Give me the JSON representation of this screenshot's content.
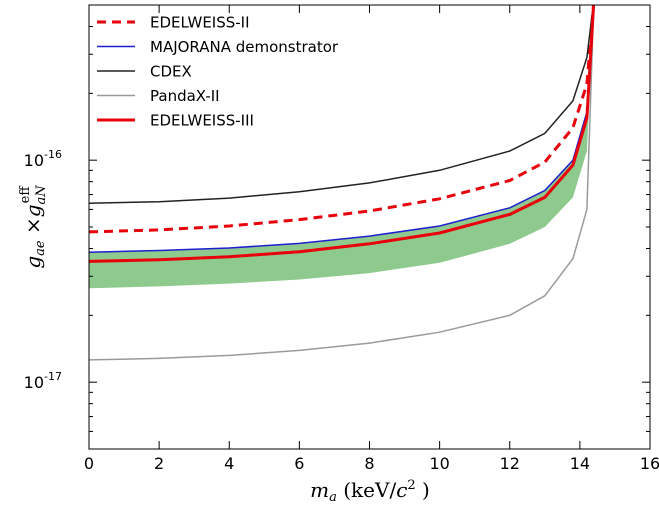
{
  "chart_data": {
    "type": "line",
    "xlabel": "m_a (keV/c^2 )",
    "ylabel": "g_ae × g_aN^eff",
    "xlim": [
      0,
      16
    ],
    "ylim": [
      5e-18,
      5e-16
    ],
    "yscale": "log",
    "xticks": [
      "0",
      "2",
      "4",
      "6",
      "8",
      "10",
      "12",
      "14",
      "16"
    ],
    "yticks": [
      {
        "value": 1e-16,
        "base": "10",
        "exp": "-16"
      },
      {
        "value": 1e-17,
        "base": "10",
        "exp": "-17"
      }
    ],
    "grid": false,
    "legend_position": "top-left",
    "cutoff_x": 14.4,
    "band": {
      "color": "#8ec98e",
      "lower": {
        "x": [
          0,
          2,
          4,
          6,
          8,
          10,
          12,
          13,
          13.8,
          14.2
        ],
        "y": [
          2.65e-17,
          2.7e-17,
          2.78e-17,
          2.9e-17,
          3.1e-17,
          3.45e-17,
          4.2e-17,
          5e-17,
          6.8e-17,
          1.1e-16
        ]
      },
      "upper": {
        "x": [
          0,
          2,
          4,
          6,
          8,
          10,
          12,
          13,
          13.8,
          14.2
        ],
        "y": [
          3.85e-17,
          3.92e-17,
          4.02e-17,
          4.22e-17,
          4.55e-17,
          5.05e-17,
          6.1e-17,
          7.3e-17,
          1e-16,
          1.65e-16
        ]
      }
    },
    "series": [
      {
        "name": "EDELWEISS-II",
        "color": "#e8000b",
        "style": "dashed",
        "width": 3,
        "x": [
          0,
          2,
          4,
          6,
          8,
          10,
          12,
          13,
          13.8,
          14.2
        ],
        "y": [
          4.75e-17,
          4.85e-17,
          5.05e-17,
          5.4e-17,
          5.9e-17,
          6.7e-17,
          8.1e-17,
          9.8e-17,
          1.4e-16,
          2.2e-16
        ]
      },
      {
        "name": "MAJORANA demonstrator",
        "color": "#1f1fd0",
        "style": "solid",
        "width": 1.5,
        "x": [
          0,
          2,
          4,
          6,
          8,
          10,
          12,
          13,
          13.8,
          14.2
        ],
        "y": [
          3.85e-17,
          3.92e-17,
          4.02e-17,
          4.22e-17,
          4.55e-17,
          5.05e-17,
          6.1e-17,
          7.3e-17,
          1e-16,
          1.65e-16
        ]
      },
      {
        "name": "CDEX",
        "color": "#222222",
        "style": "solid",
        "width": 1.5,
        "x": [
          0,
          2,
          4,
          6,
          8,
          10,
          12,
          13,
          13.8,
          14.2
        ],
        "y": [
          6.4e-17,
          6.5e-17,
          6.75e-17,
          7.2e-17,
          7.9e-17,
          9e-17,
          1.1e-16,
          1.32e-16,
          1.85e-16,
          2.9e-16
        ]
      },
      {
        "name": "PandaX-II",
        "color": "#9a9a9a",
        "style": "solid",
        "width": 1.5,
        "x": [
          0,
          2,
          4,
          6,
          8,
          10,
          12,
          13,
          13.8,
          14.2
        ],
        "y": [
          1.26e-17,
          1.28e-17,
          1.32e-17,
          1.39e-17,
          1.5e-17,
          1.68e-17,
          2e-17,
          2.45e-17,
          3.6e-17,
          6e-17
        ]
      },
      {
        "name": "EDELWEISS-III",
        "color": "#e8000b",
        "style": "solid",
        "width": 3,
        "x": [
          0,
          2,
          4,
          6,
          8,
          10,
          12,
          13,
          13.8,
          14.2
        ],
        "y": [
          3.5e-17,
          3.56e-17,
          3.67e-17,
          3.87e-17,
          4.2e-17,
          4.7e-17,
          5.7e-17,
          6.8e-17,
          9.5e-17,
          1.55e-16
        ]
      }
    ]
  }
}
